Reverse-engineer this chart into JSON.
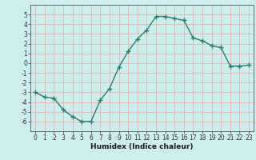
{
  "x": [
    0,
    1,
    2,
    3,
    4,
    5,
    6,
    7,
    8,
    9,
    10,
    11,
    12,
    13,
    14,
    15,
    16,
    17,
    18,
    19,
    20,
    21,
    22,
    23
  ],
  "y": [
    -3,
    -3.5,
    -3.6,
    -4.8,
    -5.5,
    -6.0,
    -6.0,
    -3.8,
    -2.6,
    -0.4,
    1.2,
    2.5,
    3.4,
    4.8,
    4.8,
    4.6,
    4.4,
    2.6,
    2.3,
    1.8,
    1.6,
    -0.3,
    -0.3,
    -0.2
  ],
  "line_color": "#2d7d6e",
  "marker": "+",
  "marker_size": 4,
  "linewidth": 1.0,
  "bg_color": "#ceeeed",
  "grid_color": "#b8d8d6",
  "xlabel": "Humidex (Indice chaleur)",
  "xlim": [
    -0.5,
    23.5
  ],
  "ylim": [
    -7,
    6
  ],
  "yticks": [
    -6,
    -5,
    -4,
    -3,
    -2,
    -1,
    0,
    1,
    2,
    3,
    4,
    5
  ],
  "xticks": [
    0,
    1,
    2,
    3,
    4,
    5,
    6,
    7,
    8,
    9,
    10,
    11,
    12,
    13,
    14,
    15,
    16,
    17,
    18,
    19,
    20,
    21,
    22,
    23
  ],
  "tick_fontsize": 5.5,
  "label_fontsize": 6.5,
  "grid_major_color": "#e8b8b8",
  "grid_minor_color": "#d0d8d0"
}
